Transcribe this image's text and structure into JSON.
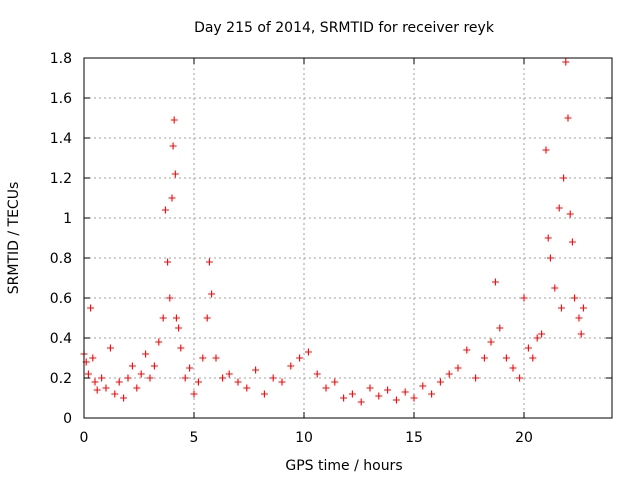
{
  "chart_data": {
    "type": "scatter",
    "title": "Day 215 of 2014, SRMTID for receiver reyk",
    "xlabel": "GPS time / hours",
    "ylabel": "SRMTID / TECUs",
    "xlim": [
      0,
      24
    ],
    "ylim": [
      0,
      1.8
    ],
    "xticks": [
      0,
      5,
      10,
      15,
      20
    ],
    "xtick_labels": [
      "0",
      "5",
      "10",
      "15",
      "20"
    ],
    "yticks": [
      0,
      0.2,
      0.4,
      0.6,
      0.8,
      1,
      1.2,
      1.4,
      1.6,
      1.8
    ],
    "ytick_labels": [
      "0",
      "0.2",
      "0.4",
      "0.6",
      "0.8",
      "1",
      "1.2",
      "1.4",
      "1.6",
      "1.8"
    ],
    "grid": true,
    "marker": "+",
    "series": [
      {
        "name": "SRMTID",
        "color": "#ff0000",
        "x": [
          0.0,
          0.1,
          0.2,
          0.3,
          0.4,
          0.5,
          0.6,
          0.8,
          1.0,
          1.2,
          1.4,
          1.6,
          1.8,
          2.0,
          2.2,
          2.4,
          2.6,
          2.8,
          3.0,
          3.2,
          3.4,
          3.6,
          3.7,
          3.8,
          3.9,
          4.0,
          4.05,
          4.1,
          4.15,
          4.2,
          4.3,
          4.4,
          4.6,
          4.8,
          5.0,
          5.2,
          5.4,
          5.6,
          5.7,
          5.8,
          6.0,
          6.3,
          6.6,
          7.0,
          7.4,
          7.8,
          8.2,
          8.6,
          9.0,
          9.4,
          9.8,
          10.2,
          10.6,
          11.0,
          11.4,
          11.8,
          12.2,
          12.6,
          13.0,
          13.4,
          13.8,
          14.2,
          14.6,
          15.0,
          15.4,
          15.8,
          16.2,
          16.6,
          17.0,
          17.4,
          17.8,
          18.2,
          18.5,
          18.7,
          18.9,
          19.2,
          19.5,
          19.8,
          20.0,
          20.2,
          20.4,
          20.6,
          20.8,
          21.0,
          21.1,
          21.2,
          21.4,
          21.6,
          21.7,
          21.8,
          21.9,
          22.0,
          22.1,
          22.2,
          22.3,
          22.5,
          22.6,
          22.7
        ],
        "y": [
          0.32,
          0.28,
          0.22,
          0.55,
          0.3,
          0.18,
          0.14,
          0.2,
          0.15,
          0.35,
          0.12,
          0.18,
          0.1,
          0.2,
          0.26,
          0.15,
          0.22,
          0.32,
          0.2,
          0.26,
          0.38,
          0.5,
          1.04,
          0.78,
          0.6,
          1.1,
          1.36,
          1.49,
          1.22,
          0.5,
          0.45,
          0.35,
          0.2,
          0.25,
          0.12,
          0.18,
          0.3,
          0.5,
          0.78,
          0.62,
          0.3,
          0.2,
          0.22,
          0.18,
          0.15,
          0.24,
          0.12,
          0.2,
          0.18,
          0.26,
          0.3,
          0.33,
          0.22,
          0.15,
          0.18,
          0.1,
          0.12,
          0.08,
          0.15,
          0.11,
          0.14,
          0.09,
          0.13,
          0.1,
          0.16,
          0.12,
          0.18,
          0.22,
          0.25,
          0.34,
          0.2,
          0.3,
          0.38,
          0.68,
          0.45,
          0.3,
          0.25,
          0.2,
          0.6,
          0.35,
          0.3,
          0.4,
          0.42,
          1.34,
          0.9,
          0.8,
          0.65,
          1.05,
          0.55,
          1.2,
          1.78,
          1.5,
          1.02,
          0.88,
          0.6,
          0.5,
          0.42,
          0.55
        ]
      }
    ]
  }
}
